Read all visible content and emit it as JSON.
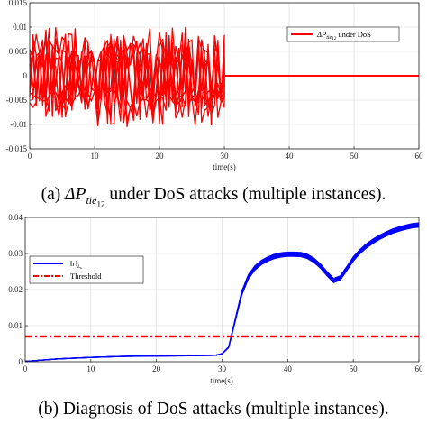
{
  "figure": {
    "caption_a_prefix": "(a) ",
    "caption_a_delta": "ΔP",
    "caption_a_sub": "tie",
    "caption_a_subsub": "12",
    "caption_a_suffix": " under DoS attacks (multiple instances).",
    "caption_b": "(b) Diagnosis of DoS attacks (multiple instances)."
  },
  "chart_data": [
    {
      "type": "line",
      "xlabel": "time(s)",
      "ylabel": "",
      "xlim": [
        0,
        60
      ],
      "ylim": [
        -0.015,
        0.015
      ],
      "xticks": [
        0,
        10,
        20,
        30,
        40,
        50,
        60
      ],
      "yticks": [
        -0.015,
        -0.01,
        -0.005,
        0,
        0.005,
        0.01,
        0.015
      ],
      "xtick_labels": [
        "0",
        "10",
        "20",
        "30",
        "40",
        "50",
        "60"
      ],
      "ytick_labels": [
        "-0.015",
        "-0.01",
        "-0.005",
        "0",
        "0.005",
        "0.01",
        "0.015"
      ],
      "grid": true,
      "legend_position": "top-right",
      "series": [
        {
          "name": "ΔP_{tie_{12}} under DoS",
          "color": "#ff0000",
          "description_instances": 10,
          "attack_window": [
            0,
            30
          ],
          "amplitude_range": [
            -0.012,
            0.013
          ],
          "value_after_attack": 0
        }
      ]
    },
    {
      "type": "line",
      "xlabel": "time(s)",
      "ylabel": "",
      "xlim": [
        0,
        60
      ],
      "ylim": [
        0,
        0.04
      ],
      "xticks": [
        0,
        10,
        20,
        30,
        40,
        50,
        60
      ],
      "yticks": [
        0,
        0.01,
        0.02,
        0.03,
        0.04
      ],
      "xtick_labels": [
        "0",
        "10",
        "20",
        "30",
        "40",
        "50",
        "60"
      ],
      "ytick_labels": [
        "0",
        "0.01",
        "0.02",
        "0.03",
        "0.04"
      ],
      "grid": true,
      "legend_position": "top-left",
      "series": [
        {
          "name": "||r||_{L_s}",
          "color": "#0000ff",
          "x": [
            0,
            5,
            10,
            15,
            20,
            25,
            29,
            30,
            31,
            32,
            33,
            34,
            35,
            36,
            37,
            38,
            39,
            40,
            41,
            42,
            43,
            44,
            45,
            46,
            47,
            48,
            49,
            50,
            51,
            52,
            53,
            54,
            55,
            56,
            57,
            58,
            59,
            60
          ],
          "values": [
            0.0001,
            0.0008,
            0.0012,
            0.0015,
            0.0016,
            0.0017,
            0.0018,
            0.0022,
            0.004,
            0.0115,
            0.019,
            0.0235,
            0.026,
            0.0275,
            0.0285,
            0.0292,
            0.0296,
            0.0298,
            0.0298,
            0.0297,
            0.0292,
            0.0281,
            0.0265,
            0.0244,
            0.0225,
            0.0232,
            0.0258,
            0.0285,
            0.0305,
            0.0321,
            0.0334,
            0.0345,
            0.0354,
            0.0362,
            0.0368,
            0.0373,
            0.0377,
            0.0379
          ],
          "instances": 10,
          "spread": 0.0012
        },
        {
          "name": "Threshold",
          "color": "#ff0000",
          "style": "dash-dot",
          "x": [
            0,
            60
          ],
          "values": [
            0.007,
            0.007
          ]
        }
      ]
    }
  ]
}
